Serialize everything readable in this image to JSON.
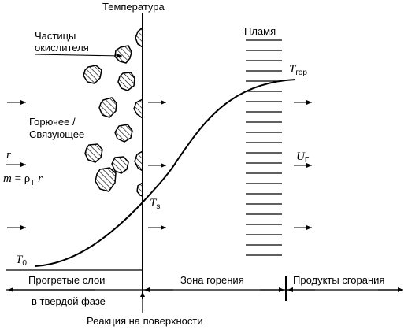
{
  "labels": {
    "temperature": "Температура",
    "oxidizer_line1": "Частицы",
    "oxidizer_line2": "окислителя",
    "flame": "Пламя",
    "fuel_line1": "Горючее /",
    "fuel_line2": "Связующее",
    "heated_layers_line1": "Прогретые слои",
    "heated_layers_line2": "в твердой фазе",
    "combustion_zone": "Зона горения",
    "products": "Продукты сгорания",
    "surface_reaction": "Реакция на поверхности"
  },
  "symbols": {
    "T0_main": "T",
    "T0_sub": "0",
    "Ts_main": "T",
    "Ts_sub": "s",
    "Tgor_main": "T",
    "Tgor_sub": "гор",
    "Ug_main": "U",
    "Ug_sub": "Г",
    "r": "r",
    "m_eq_lhs": "m",
    "m_eq_rest": " = ρ",
    "m_eq_sub": "Т",
    "m_eq_r": " r"
  }
}
